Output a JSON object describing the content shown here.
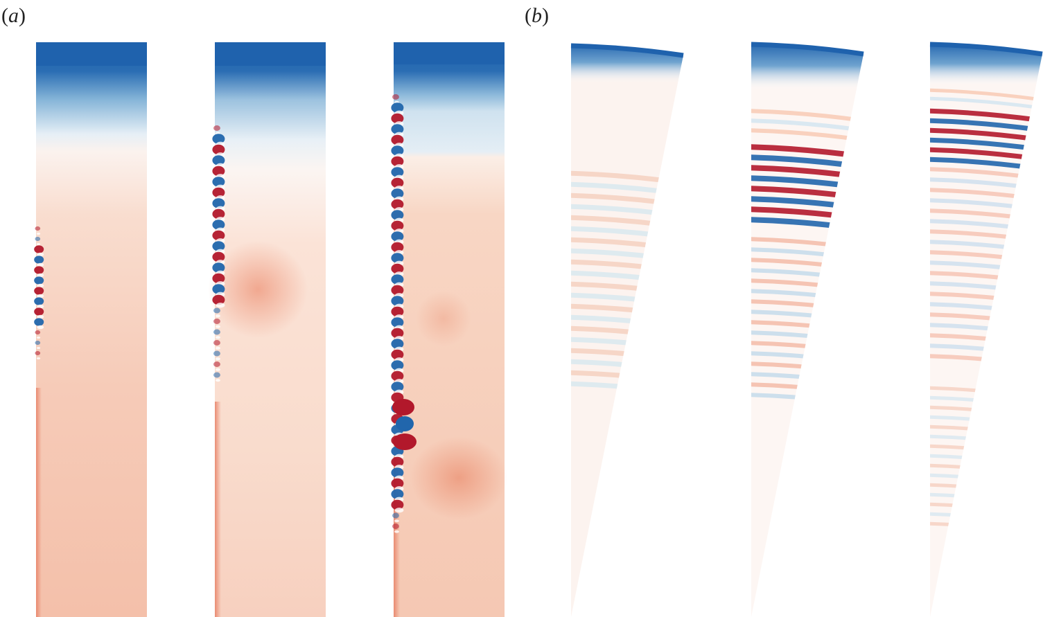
{
  "figure": {
    "panel_a": {
      "open": "(",
      "letter": "a",
      "close": ")",
      "field_count": 3
    },
    "panel_b": {
      "open": "(",
      "letter": "b",
      "close": ")",
      "field_count": 3
    }
  },
  "colors": {
    "strong_blue": "#2166ac",
    "light_blue": "#d1e5f0",
    "white": "#f7f7f7",
    "light_red": "#f8c8b0",
    "mid_red": "#ef9a80",
    "strong_red": "#b2182b"
  }
}
